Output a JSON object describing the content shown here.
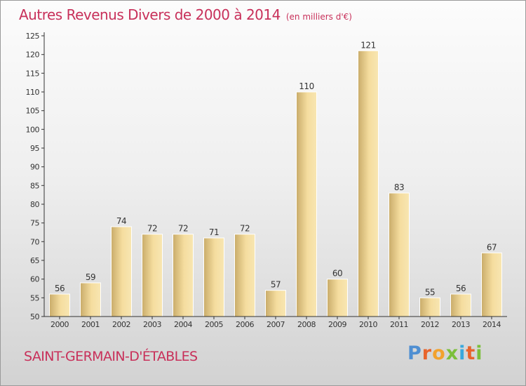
{
  "header": {
    "title": "Autres Revenus Divers de 2000 à 2014",
    "subtitle": "(en milliers d'€)"
  },
  "footer": {
    "commune": "SAINT-GERMAIN-D'ÉTABLES",
    "logo_text": "Proxiti"
  },
  "chart_data": {
    "type": "bar",
    "title": "Autres Revenus Divers de 2000 à 2014",
    "subtitle": "(en milliers d'€)",
    "categories": [
      "2000",
      "2001",
      "2002",
      "2003",
      "2004",
      "2005",
      "2006",
      "2007",
      "2008",
      "2009",
      "2010",
      "2011",
      "2012",
      "2013",
      "2014"
    ],
    "values": [
      56,
      59,
      74,
      72,
      72,
      71,
      72,
      57,
      110,
      60,
      121,
      83,
      55,
      56,
      67
    ],
    "ylim": [
      50,
      125
    ],
    "yticks": [
      50,
      55,
      60,
      65,
      70,
      75,
      80,
      85,
      90,
      95,
      100,
      105,
      110,
      115,
      120,
      125
    ],
    "grid": false,
    "xlabel": "",
    "ylabel": "",
    "colors": {
      "bar_light": "#f7e2a6",
      "bar_dark": "#c9ac6a",
      "text": "#c8305a",
      "axis": "#333333"
    }
  }
}
